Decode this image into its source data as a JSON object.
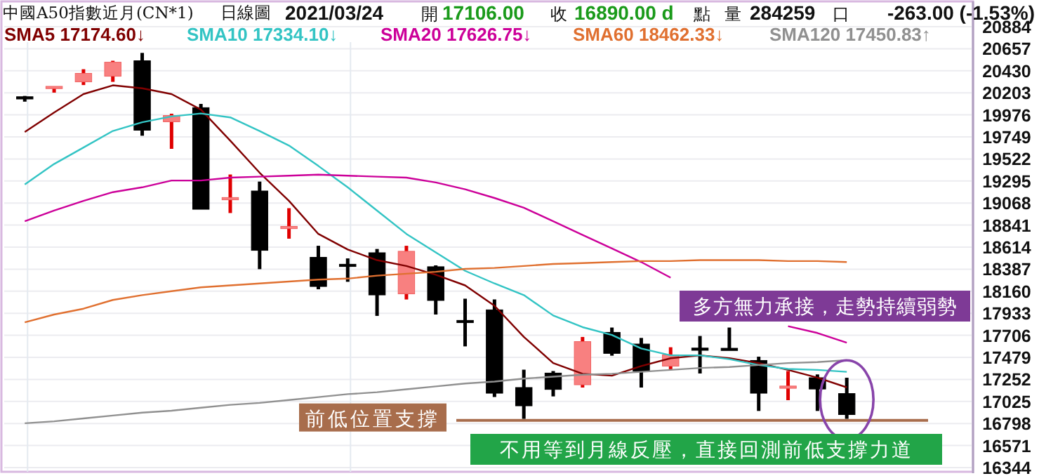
{
  "chart_data": {
    "type": "candlestick",
    "title": "中國A50指數近月(CN*1)",
    "subtitle": "日線圖",
    "categories": [
      null,
      null,
      null,
      null,
      null,
      null,
      null,
      null,
      null,
      null,
      null,
      null,
      null,
      null,
      null,
      null,
      null,
      null,
      null,
      null,
      null,
      null,
      null,
      null,
      null,
      null,
      null,
      null,
      null
    ],
    "ohlc": [
      [
        20151,
        20171,
        20112,
        20132
      ],
      [
        20244,
        20262,
        20205,
        20258
      ],
      [
        20316,
        20446,
        20283,
        20403
      ],
      [
        20374,
        20533,
        20316,
        20518
      ],
      [
        20533,
        20614,
        19761,
        19818
      ],
      [
        19905,
        19988,
        19626,
        19969
      ],
      [
        20050,
        20089,
        19004,
        19004
      ],
      [
        19107,
        19362,
        18965,
        19113
      ],
      [
        19192,
        19289,
        18387,
        18581
      ],
      [
        18808,
        19015,
        18701,
        18816
      ],
      [
        18509,
        18628,
        18180,
        18209
      ],
      [
        18426,
        18498,
        18257,
        18416
      ],
      [
        18556,
        18595,
        17906,
        18122
      ],
      [
        18133,
        18628,
        18075,
        18571
      ],
      [
        18412,
        18426,
        17920,
        18065
      ],
      [
        17848,
        18083,
        17592,
        17838
      ],
      [
        17968,
        18075,
        17071,
        17110
      ],
      [
        17168,
        17352,
        16846,
        16980
      ],
      [
        17317,
        17338,
        17077,
        17149
      ],
      [
        17197,
        17689,
        17168,
        17641
      ],
      [
        17736,
        17786,
        17496,
        17520
      ],
      [
        17616,
        17679,
        17168,
        17337
      ],
      [
        17389,
        17583,
        17352,
        17505
      ],
      [
        17563,
        17699,
        17313,
        17554
      ],
      [
        17561,
        17786,
        17555,
        17555
      ],
      [
        17447,
        17486,
        16927,
        17110
      ],
      [
        17163,
        17338,
        17038,
        17172
      ],
      [
        17269,
        17303,
        16927,
        17153
      ],
      [
        17106,
        17269,
        16846,
        16890
      ]
    ],
    "series": [
      {
        "name": "SMA5 17174.60↓",
        "type": "line",
        "color": "#800000",
        "values": [
          19800,
          20000,
          20190,
          20280,
          20250,
          20190,
          20030,
          19710,
          19380,
          19090,
          18750,
          18590,
          18480,
          18420,
          18330,
          18220,
          18010,
          17690,
          17420,
          17310,
          17290,
          17390,
          17470,
          17500,
          17470,
          17420,
          17350,
          17270,
          17170
        ]
      },
      {
        "name": "SMA10 17334.10↓",
        "type": "line",
        "color": "#33c4c4",
        "values": [
          19260,
          19470,
          19640,
          19810,
          19900,
          19960,
          19990,
          19950,
          19810,
          19660,
          19450,
          19230,
          18990,
          18750,
          18560,
          18370,
          18240,
          18120,
          17910,
          17790,
          17710,
          17570,
          17500,
          17500,
          17460,
          17400,
          17360,
          17350,
          17330
        ]
      },
      {
        "name": "SMA20 17626.75↓",
        "type": "line",
        "color": "#cc0099",
        "values": [
          18880,
          18990,
          19090,
          19180,
          19230,
          19300,
          19300,
          19330,
          19340,
          19350,
          19360,
          19350,
          19340,
          19330,
          19280,
          19210,
          19120,
          19020,
          18880,
          18740,
          18600,
          18460,
          18300,
          null,
          null,
          null,
          17800,
          17730,
          17630
        ]
      },
      {
        "name": "SMA60 18462.33↓",
        "type": "line",
        "color": "#e07030",
        "values": [
          17840,
          17920,
          17980,
          18070,
          18120,
          18160,
          18200,
          18220,
          18240,
          18260,
          18280,
          18290,
          18320,
          18340,
          18360,
          18390,
          18400,
          18420,
          18440,
          18450,
          18460,
          18470,
          18470,
          18480,
          18480,
          18480,
          18470,
          18470,
          18460
        ]
      },
      {
        "name": "SMA120 17450.83↑",
        "type": "line",
        "color": "#909090",
        "values": [
          16800,
          16820,
          16850,
          16880,
          16910,
          16930,
          16960,
          16990,
          17010,
          17040,
          17070,
          17100,
          17120,
          17150,
          17180,
          17210,
          17230,
          17260,
          17280,
          17300,
          17310,
          17330,
          17350,
          17370,
          17380,
          17400,
          17420,
          17430,
          17450
        ]
      }
    ],
    "ylim": [
      16344,
      20884
    ],
    "yticks": [
      16344,
      16571,
      16798,
      17025,
      17252,
      17479,
      17706,
      17933,
      18160,
      18387,
      18614,
      18841,
      19068,
      19295,
      19522,
      19749,
      19976,
      20203,
      20430,
      20657,
      20884
    ],
    "grid": "y",
    "tick_labels": "y",
    "legend": "top",
    "ref_lines": [
      {
        "axis": "y",
        "value": 16831,
        "label": "前低位置支撐",
        "color": "#a86d4c"
      }
    ],
    "annotations": [
      "2021/03/24",
      "開",
      "17106.00",
      "收",
      "16890.00 d",
      "點",
      "量",
      "284259",
      "口",
      "-263.00 (-1.53%)",
      "多方無力承接，走勢持續弱勢",
      "不用等到月線反壓，直接回測前低支撐力道"
    ]
  }
}
